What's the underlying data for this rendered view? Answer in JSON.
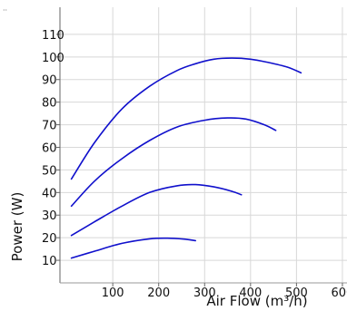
{
  "corner_mark": "··",
  "chart_data": {
    "type": "line",
    "title": "",
    "xlabel": "Air Flow (m³/h)",
    "ylabel": "Power (W)",
    "xlim": [
      -15,
      610
    ],
    "ylim": [
      0,
      122
    ],
    "xticks": [
      100,
      200,
      300,
      400,
      500,
      600
    ],
    "yticks": [
      10,
      20,
      30,
      40,
      50,
      60,
      70,
      80,
      90,
      100,
      110
    ],
    "grid": true,
    "legend": "none",
    "series_color": "#1010cc",
    "series": [
      {
        "x": [
          10,
          60,
          120,
          180,
          240,
          280,
          320,
          360,
          400,
          440,
          480,
          510
        ],
        "y": [
          46,
          62,
          77,
          87,
          94,
          97,
          99,
          99.5,
          99,
          97.5,
          95.5,
          93
        ]
      },
      {
        "x": [
          10,
          60,
          120,
          180,
          240,
          300,
          350,
          390,
          430,
          455
        ],
        "y": [
          34,
          45,
          55,
          63,
          69,
          72,
          73,
          72.5,
          70,
          67.5
        ]
      },
      {
        "x": [
          10,
          60,
          120,
          180,
          240,
          280,
          320,
          360,
          380
        ],
        "y": [
          21,
          27,
          34,
          40,
          43,
          43.5,
          42.5,
          40.5,
          39
        ]
      },
      {
        "x": [
          10,
          60,
          120,
          180,
          220,
          260,
          280
        ],
        "y": [
          11,
          14,
          17.5,
          19.5,
          19.8,
          19.3,
          18.7
        ]
      }
    ]
  }
}
